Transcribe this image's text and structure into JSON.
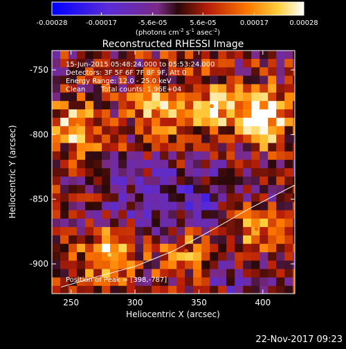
{
  "chart_data": {
    "type": "heatmap",
    "title": "Reconstructed RHESSI Image",
    "xlabel": "Heliocentric X (arcsec)",
    "ylabel": "Heliocentric Y (arcsec)",
    "xlim": [
      235,
      425
    ],
    "ylim": [
      -923,
      -735
    ],
    "xticks": [
      250,
      300,
      350,
      400
    ],
    "yticks": [
      -750,
      -800,
      -850,
      -900
    ],
    "colorbar": {
      "ticks": [
        "-0.00028",
        "-0.00017",
        "-5.6e-05",
        "5.6e-05",
        "0.00017",
        "0.00028"
      ],
      "range": [
        -0.00028,
        0.00028
      ],
      "units_prefix": "(photons cm",
      "units_sup1": "-2",
      "units_mid": " s",
      "units_sup2": "-1",
      "units_mid2": " asec",
      "units_sup3": "-2",
      "units_suffix": ")"
    },
    "annotations": {
      "time_range": "15-Jun-2015 05:48:24.000 to 05:53:24.000",
      "detectors": "Detectors: 3F 5F 6F 7F 8F 9F, Att 0",
      "energy": "Energy Range: 12.0 - 25.0 keV",
      "clean": "Clean",
      "counts": "Total counts: 1.96E+04",
      "peak": "Position of Peak = [398,-787]"
    },
    "peak_position": [
      398,
      -787
    ],
    "limb_curve": [
      [
        242,
        -918
      ],
      [
        270,
        -910
      ],
      [
        300,
        -902
      ],
      [
        330,
        -890
      ],
      [
        360,
        -874
      ],
      [
        390,
        -857
      ],
      [
        425,
        -839
      ]
    ],
    "bright_sources": [
      {
        "x": 398,
        "y": -787,
        "intensity": 0.00028
      },
      {
        "x": 280,
        "y": -893,
        "intensity": 0.00024
      },
      {
        "x": 255,
        "y": -793,
        "intensity": 0.00018
      },
      {
        "x": 318,
        "y": -780,
        "intensity": 0.00016
      },
      {
        "x": 360,
        "y": -778,
        "intensity": 0.00015
      },
      {
        "x": 395,
        "y": -873,
        "intensity": 0.00014
      },
      {
        "x": 340,
        "y": -890,
        "intensity": 0.00012
      }
    ],
    "grid": false
  },
  "footer": {
    "date": "22-Nov-2017 09:23"
  }
}
